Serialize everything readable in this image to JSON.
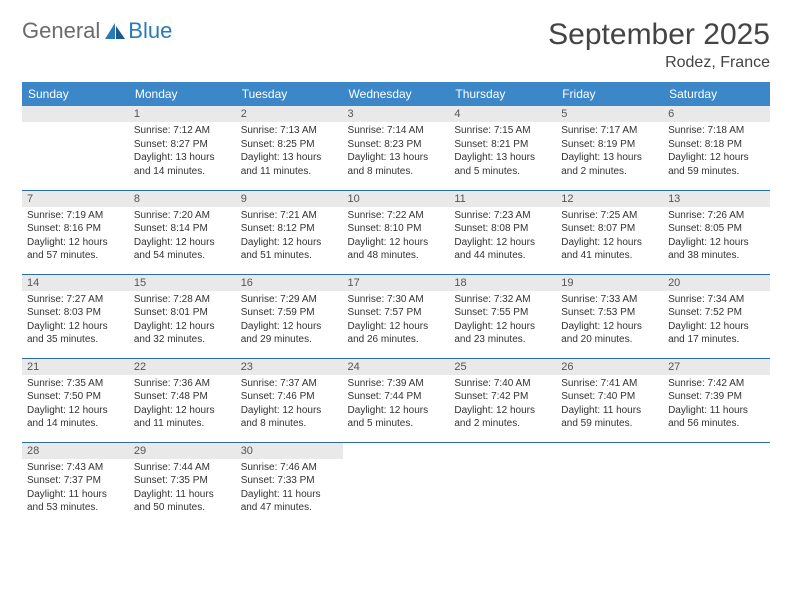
{
  "brand": {
    "part1": "General",
    "part2": "Blue"
  },
  "title": "September 2025",
  "location": "Rodez, France",
  "styling": {
    "header_bg": "#3b87c8",
    "header_text": "#ffffff",
    "row_border": "#2a6ea5",
    "daynum_bg": "#e9e9e9",
    "title_fontsize": 30,
    "location_fontsize": 16,
    "dayhead_fontsize": 12,
    "cell_fontsize": 10
  },
  "day_headers": [
    "Sunday",
    "Monday",
    "Tuesday",
    "Wednesday",
    "Thursday",
    "Friday",
    "Saturday"
  ],
  "weeks": [
    [
      null,
      {
        "num": "1",
        "sunrise": "Sunrise: 7:12 AM",
        "sunset": "Sunset: 8:27 PM",
        "day1": "Daylight: 13 hours",
        "day2": "and 14 minutes."
      },
      {
        "num": "2",
        "sunrise": "Sunrise: 7:13 AM",
        "sunset": "Sunset: 8:25 PM",
        "day1": "Daylight: 13 hours",
        "day2": "and 11 minutes."
      },
      {
        "num": "3",
        "sunrise": "Sunrise: 7:14 AM",
        "sunset": "Sunset: 8:23 PM",
        "day1": "Daylight: 13 hours",
        "day2": "and 8 minutes."
      },
      {
        "num": "4",
        "sunrise": "Sunrise: 7:15 AM",
        "sunset": "Sunset: 8:21 PM",
        "day1": "Daylight: 13 hours",
        "day2": "and 5 minutes."
      },
      {
        "num": "5",
        "sunrise": "Sunrise: 7:17 AM",
        "sunset": "Sunset: 8:19 PM",
        "day1": "Daylight: 13 hours",
        "day2": "and 2 minutes."
      },
      {
        "num": "6",
        "sunrise": "Sunrise: 7:18 AM",
        "sunset": "Sunset: 8:18 PM",
        "day1": "Daylight: 12 hours",
        "day2": "and 59 minutes."
      }
    ],
    [
      {
        "num": "7",
        "sunrise": "Sunrise: 7:19 AM",
        "sunset": "Sunset: 8:16 PM",
        "day1": "Daylight: 12 hours",
        "day2": "and 57 minutes."
      },
      {
        "num": "8",
        "sunrise": "Sunrise: 7:20 AM",
        "sunset": "Sunset: 8:14 PM",
        "day1": "Daylight: 12 hours",
        "day2": "and 54 minutes."
      },
      {
        "num": "9",
        "sunrise": "Sunrise: 7:21 AM",
        "sunset": "Sunset: 8:12 PM",
        "day1": "Daylight: 12 hours",
        "day2": "and 51 minutes."
      },
      {
        "num": "10",
        "sunrise": "Sunrise: 7:22 AM",
        "sunset": "Sunset: 8:10 PM",
        "day1": "Daylight: 12 hours",
        "day2": "and 48 minutes."
      },
      {
        "num": "11",
        "sunrise": "Sunrise: 7:23 AM",
        "sunset": "Sunset: 8:08 PM",
        "day1": "Daylight: 12 hours",
        "day2": "and 44 minutes."
      },
      {
        "num": "12",
        "sunrise": "Sunrise: 7:25 AM",
        "sunset": "Sunset: 8:07 PM",
        "day1": "Daylight: 12 hours",
        "day2": "and 41 minutes."
      },
      {
        "num": "13",
        "sunrise": "Sunrise: 7:26 AM",
        "sunset": "Sunset: 8:05 PM",
        "day1": "Daylight: 12 hours",
        "day2": "and 38 minutes."
      }
    ],
    [
      {
        "num": "14",
        "sunrise": "Sunrise: 7:27 AM",
        "sunset": "Sunset: 8:03 PM",
        "day1": "Daylight: 12 hours",
        "day2": "and 35 minutes."
      },
      {
        "num": "15",
        "sunrise": "Sunrise: 7:28 AM",
        "sunset": "Sunset: 8:01 PM",
        "day1": "Daylight: 12 hours",
        "day2": "and 32 minutes."
      },
      {
        "num": "16",
        "sunrise": "Sunrise: 7:29 AM",
        "sunset": "Sunset: 7:59 PM",
        "day1": "Daylight: 12 hours",
        "day2": "and 29 minutes."
      },
      {
        "num": "17",
        "sunrise": "Sunrise: 7:30 AM",
        "sunset": "Sunset: 7:57 PM",
        "day1": "Daylight: 12 hours",
        "day2": "and 26 minutes."
      },
      {
        "num": "18",
        "sunrise": "Sunrise: 7:32 AM",
        "sunset": "Sunset: 7:55 PM",
        "day1": "Daylight: 12 hours",
        "day2": "and 23 minutes."
      },
      {
        "num": "19",
        "sunrise": "Sunrise: 7:33 AM",
        "sunset": "Sunset: 7:53 PM",
        "day1": "Daylight: 12 hours",
        "day2": "and 20 minutes."
      },
      {
        "num": "20",
        "sunrise": "Sunrise: 7:34 AM",
        "sunset": "Sunset: 7:52 PM",
        "day1": "Daylight: 12 hours",
        "day2": "and 17 minutes."
      }
    ],
    [
      {
        "num": "21",
        "sunrise": "Sunrise: 7:35 AM",
        "sunset": "Sunset: 7:50 PM",
        "day1": "Daylight: 12 hours",
        "day2": "and 14 minutes."
      },
      {
        "num": "22",
        "sunrise": "Sunrise: 7:36 AM",
        "sunset": "Sunset: 7:48 PM",
        "day1": "Daylight: 12 hours",
        "day2": "and 11 minutes."
      },
      {
        "num": "23",
        "sunrise": "Sunrise: 7:37 AM",
        "sunset": "Sunset: 7:46 PM",
        "day1": "Daylight: 12 hours",
        "day2": "and 8 minutes."
      },
      {
        "num": "24",
        "sunrise": "Sunrise: 7:39 AM",
        "sunset": "Sunset: 7:44 PM",
        "day1": "Daylight: 12 hours",
        "day2": "and 5 minutes."
      },
      {
        "num": "25",
        "sunrise": "Sunrise: 7:40 AM",
        "sunset": "Sunset: 7:42 PM",
        "day1": "Daylight: 12 hours",
        "day2": "and 2 minutes."
      },
      {
        "num": "26",
        "sunrise": "Sunrise: 7:41 AM",
        "sunset": "Sunset: 7:40 PM",
        "day1": "Daylight: 11 hours",
        "day2": "and 59 minutes."
      },
      {
        "num": "27",
        "sunrise": "Sunrise: 7:42 AM",
        "sunset": "Sunset: 7:39 PM",
        "day1": "Daylight: 11 hours",
        "day2": "and 56 minutes."
      }
    ],
    [
      {
        "num": "28",
        "sunrise": "Sunrise: 7:43 AM",
        "sunset": "Sunset: 7:37 PM",
        "day1": "Daylight: 11 hours",
        "day2": "and 53 minutes."
      },
      {
        "num": "29",
        "sunrise": "Sunrise: 7:44 AM",
        "sunset": "Sunset: 7:35 PM",
        "day1": "Daylight: 11 hours",
        "day2": "and 50 minutes."
      },
      {
        "num": "30",
        "sunrise": "Sunrise: 7:46 AM",
        "sunset": "Sunset: 7:33 PM",
        "day1": "Daylight: 11 hours",
        "day2": "and 47 minutes."
      },
      null,
      null,
      null,
      null
    ]
  ]
}
